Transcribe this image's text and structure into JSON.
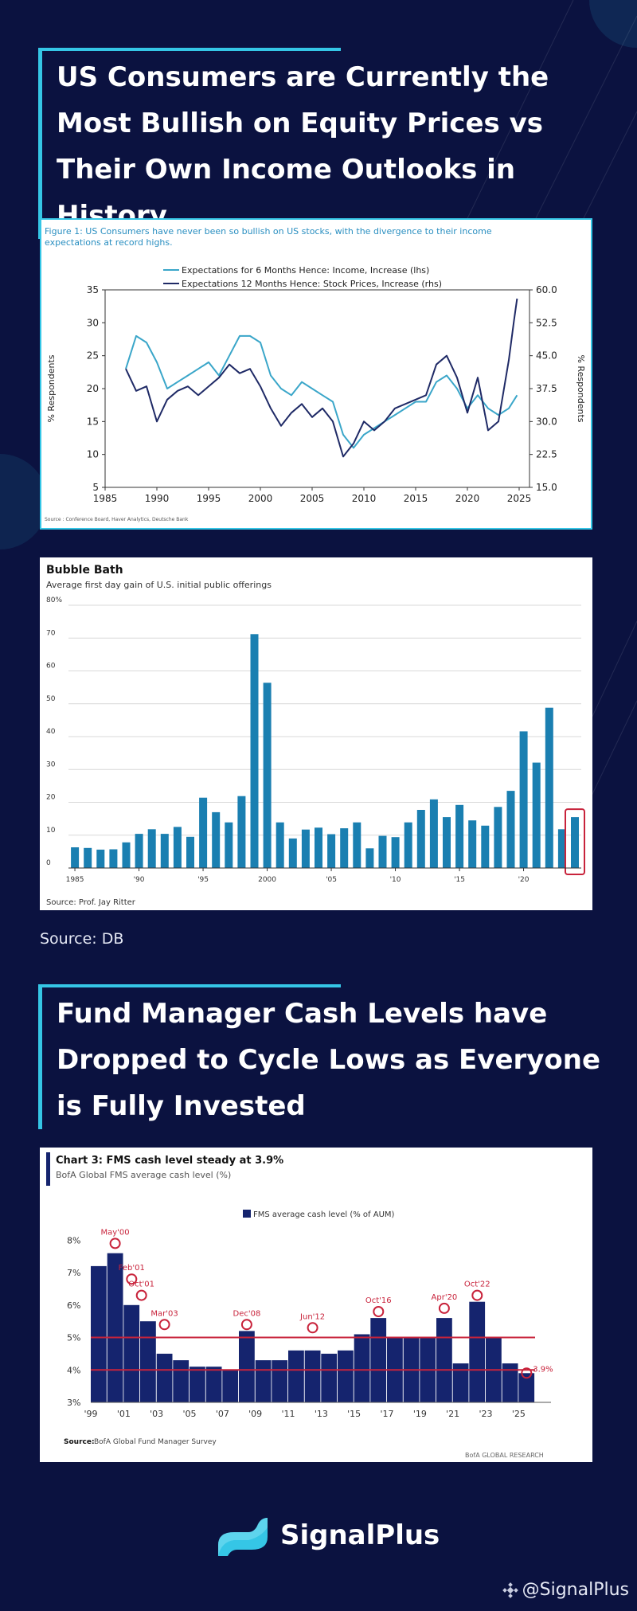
{
  "section1": {
    "title": "US Consumers are Currently the Most Bullish on Equity Prices vs Their Own Income Outlooks in History"
  },
  "section2": {
    "title": "Fund Manager Cash Levels have Dropped to Cycle Lows as Everyone is Fully Invested"
  },
  "source_line": "Source: DB",
  "brand": {
    "name": "SignalPlus",
    "handle": "@SignalPlus"
  },
  "colors": {
    "background": "#0b1240",
    "accent": "#35c6e6",
    "navy": "#1f2a66",
    "teal": "#3aa6c9",
    "ipo_bar": "#1a7fb1",
    "fms_bar": "#15246e",
    "red": "#c8233b"
  },
  "chart_data": [
    {
      "type": "line",
      "title": "Figure 1: US Consumers have never been so bullish on US stocks, with the divergence to their income expectations at record highs.",
      "ylabel": "% Respondents",
      "ylabel_right": "% Respondents",
      "x_ticks": [
        "1985",
        "1990",
        "1995",
        "2000",
        "2005",
        "2010",
        "2015",
        "2020",
        "2025"
      ],
      "y_ticks": [
        "5",
        "10",
        "15",
        "20",
        "25",
        "30",
        "35"
      ],
      "y_right_ticks": [
        "15.0",
        "22.5",
        "30.0",
        "37.5",
        "45.0",
        "52.5",
        "60.0"
      ],
      "xlim": [
        1985,
        2026
      ],
      "ylim": [
        5,
        35
      ],
      "ylim_right": [
        15,
        60
      ],
      "source": "Source : Conference Board, Haver Analytics, Deutsche Bank",
      "series": [
        {
          "name": "Expectations for 6 Months Hence: Income, Increase (lhs)",
          "axis": "left",
          "x": [
            1987,
            1988,
            1989,
            1990,
            1991,
            1992,
            1993,
            1994,
            1995,
            1996,
            1997,
            1998,
            1999,
            2000,
            2001,
            2002,
            2003,
            2004,
            2005,
            2006,
            2007,
            2008,
            2009,
            2010,
            2011,
            2012,
            2013,
            2014,
            2015,
            2016,
            2017,
            2018,
            2019,
            2020,
            2021,
            2022,
            2023,
            2024,
            2024.8
          ],
          "values": [
            23,
            28,
            27,
            24,
            20,
            21,
            22,
            23,
            24,
            22,
            25,
            28,
            28,
            27,
            22,
            20,
            19,
            21,
            20,
            19,
            18,
            13,
            11,
            13,
            14,
            15,
            16,
            17,
            18,
            18,
            21,
            22,
            20,
            17,
            19,
            17,
            16,
            17,
            19
          ]
        },
        {
          "name": "Expectations 12 Months Hence: Stock Prices, Increase (rhs)",
          "axis": "right",
          "x": [
            1987,
            1988,
            1989,
            1990,
            1991,
            1992,
            1993,
            1994,
            1995,
            1996,
            1997,
            1998,
            1999,
            2000,
            2001,
            2002,
            2003,
            2004,
            2005,
            2006,
            2007,
            2008,
            2009,
            2010,
            2011,
            2012,
            2013,
            2014,
            2015,
            2016,
            2017,
            2018,
            2019,
            2020,
            2021,
            2022,
            2023,
            2024,
            2024.5,
            2024.8
          ],
          "values": [
            42,
            37,
            38,
            30,
            35,
            37,
            38,
            36,
            38,
            40,
            43,
            41,
            42,
            38,
            33,
            29,
            32,
            34,
            31,
            33,
            30,
            22,
            25,
            30,
            28,
            30,
            33,
            34,
            35,
            36,
            43,
            45,
            40,
            32,
            40,
            28,
            30,
            44,
            53,
            58
          ]
        }
      ]
    },
    {
      "type": "bar",
      "title": "Bubble Bath",
      "subtitle": "Average first day gain of U.S. initial public offerings",
      "source": "Source: Prof. Jay Ritter",
      "y_ticks": [
        "0",
        "10",
        "20",
        "30",
        "40",
        "50",
        "60",
        "70",
        "80%"
      ],
      "ylim": [
        0,
        80
      ],
      "x_tick_labels": [
        "1985",
        "'90",
        "'95",
        "2000",
        "'05",
        "'10",
        "'15",
        "'20"
      ],
      "categories": [
        "1985",
        "1986",
        "1987",
        "1988",
        "1989",
        "1990",
        "1991",
        "1992",
        "1993",
        "1994",
        "1995",
        "1996",
        "1997",
        "1998",
        "1999",
        "2000",
        "2001",
        "2002",
        "2003",
        "2004",
        "2005",
        "2006",
        "2007",
        "2008",
        "2009",
        "2010",
        "2011",
        "2012",
        "2013",
        "2014",
        "2015",
        "2016",
        "2017",
        "2018",
        "2019",
        "2020",
        "2021",
        "2022",
        "2023",
        "2024"
      ],
      "values": [
        6.3,
        6.1,
        5.6,
        5.7,
        7.8,
        10.4,
        11.8,
        10.4,
        12.5,
        9.5,
        21.4,
        17.0,
        13.9,
        21.9,
        71.2,
        56.4,
        13.9,
        9.0,
        11.7,
        12.3,
        10.3,
        12.1,
        13.9,
        6.0,
        9.8,
        9.4,
        13.9,
        17.7,
        20.9,
        15.5,
        19.2,
        14.5,
        12.9,
        18.6,
        23.5,
        41.6,
        32.1,
        48.8,
        11.8,
        15.5
      ],
      "highlighted_category": "2024"
    },
    {
      "type": "bar",
      "title": "Chart 3: FMS cash level steady at 3.9%",
      "subtitle": "BofA Global FMS average cash level (%)",
      "legend": "FMS average cash level (% of AUM)",
      "source_label": "Source:",
      "source": "BofA Global Fund Manager Survey",
      "footer": "BofA GLOBAL RESEARCH",
      "y_ticks": [
        "3%",
        "4%",
        "5%",
        "6%",
        "7%",
        "8%"
      ],
      "ylim": [
        3,
        8.5
      ],
      "x_tick_labels": [
        "'99",
        "'01",
        "'03",
        "'05",
        "'07",
        "'09",
        "'11",
        "'13",
        "'15",
        "'17",
        "'19",
        "'21",
        "'23",
        "'25"
      ],
      "reference_lines": [
        5.0,
        4.0
      ],
      "categories": [
        "1999",
        "2000",
        "2001",
        "2002",
        "2003",
        "2004",
        "2005",
        "2006",
        "2007",
        "2008",
        "2009",
        "2010",
        "2011",
        "2012",
        "2013",
        "2014",
        "2015",
        "2016",
        "2017",
        "2018",
        "2019",
        "2020",
        "2021",
        "2022",
        "2023",
        "2024",
        "2025"
      ],
      "values": [
        7.2,
        7.6,
        6.0,
        5.5,
        4.5,
        4.3,
        4.1,
        4.1,
        4.0,
        5.2,
        4.3,
        4.3,
        4.6,
        4.6,
        4.5,
        4.6,
        5.1,
        5.6,
        5.0,
        5.0,
        5.0,
        5.6,
        4.2,
        6.1,
        5.0,
        4.2,
        3.9
      ],
      "annotations": [
        {
          "label": "May'00",
          "x": "2000",
          "value": 7.9
        },
        {
          "label": "Feb'01",
          "x": "2001",
          "value": 6.8
        },
        {
          "label": "Oct'01",
          "x": "2001",
          "value": 6.3
        },
        {
          "label": "Mar'03",
          "x": "2003",
          "value": 5.4
        },
        {
          "label": "Dec'08",
          "x": "2008",
          "value": 5.4
        },
        {
          "label": "Jun'12",
          "x": "2012",
          "value": 5.3
        },
        {
          "label": "Oct'16",
          "x": "2016",
          "value": 5.8
        },
        {
          "label": "Apr'20",
          "x": "2020",
          "value": 5.9
        },
        {
          "label": "Oct'22",
          "x": "2022",
          "value": 6.3
        },
        {
          "label": "3.9%",
          "x": "2025",
          "value": 3.9
        }
      ]
    }
  ]
}
